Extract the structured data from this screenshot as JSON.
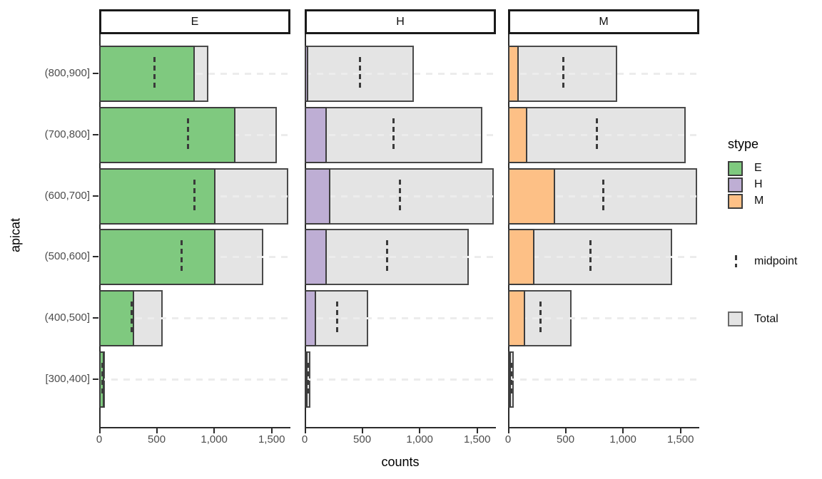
{
  "facet_strips": [
    "E",
    "H",
    "M"
  ],
  "y_axis": {
    "title": "apicat",
    "categories": [
      "(800,900]",
      "(700,800]",
      "(600,700]",
      "(500,600]",
      "(400,500]",
      "[300,400]"
    ]
  },
  "x_axis": {
    "title": "counts",
    "tick_labels": [
      "0",
      "500",
      "1,000",
      "1,500"
    ],
    "tick_values": [
      0,
      500,
      1000,
      1500
    ]
  },
  "legend": {
    "title": "stype",
    "entries": [
      {
        "label": "E",
        "color": "#7FC97F"
      },
      {
        "label": "H",
        "color": "#BEAED4"
      },
      {
        "label": "M",
        "color": "#FDC086"
      }
    ],
    "midpoint": {
      "label": "midpoint"
    },
    "total": {
      "label": "Total",
      "fill": "#E4E4E4"
    }
  },
  "colors": {
    "total_fill": "#E4E4E4",
    "bar_border": "#454545",
    "axis_line": "#2b2b2b",
    "grid_dash": "#ECECEC",
    "tick_text": "#4d4d4d"
  },
  "chart_data": {
    "type": "bar",
    "orientation": "horizontal",
    "title": "",
    "xlabel": "counts",
    "ylabel": "apicat",
    "xlim": [
      0,
      1663
    ],
    "x_ticks": [
      0,
      500,
      1000,
      1500
    ],
    "grid": "dashed horizontal at each category",
    "legend_position": "right",
    "facets": [
      "E",
      "H",
      "M"
    ],
    "categories": [
      "(800,900]",
      "(700,800]",
      "(600,700]",
      "(500,600]",
      "(400,500]",
      "[300,400]"
    ],
    "totals": [
      950,
      1545,
      1645,
      1430,
      555,
      50
    ],
    "midpoints": [
      475,
      772.5,
      822.5,
      715,
      277.5,
      25
    ],
    "series": [
      {
        "name": "E",
        "color": "#7FC97F",
        "values": [
          830,
          1185,
          1010,
          1010,
          305,
          45
        ]
      },
      {
        "name": "H",
        "color": "#BEAED4",
        "values": [
          30,
          190,
          225,
          190,
          100,
          3
        ]
      },
      {
        "name": "M",
        "color": "#FDC086",
        "values": [
          90,
          170,
          410,
          230,
          150,
          2
        ]
      }
    ],
    "note": "Each facet shows one stype count (colored) overlaid on the Total (gray); dashed tick = midpoint (Total/2)"
  }
}
